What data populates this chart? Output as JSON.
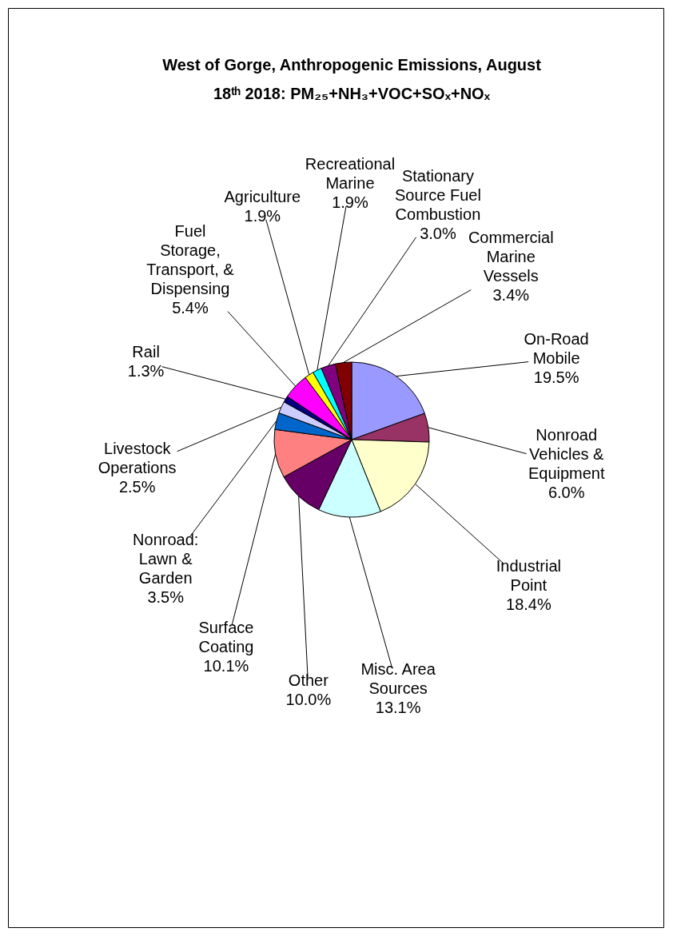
{
  "chart_data": {
    "type": "pie",
    "title": "West of Gorge, Anthropogenic Emissions, August 18ᵗʰ 2018: PM₂₅+NH₃+VOC+SOₓ+NOₓ",
    "categories": [
      "On-Road Mobile",
      "Nonroad Vehicles & Equipment",
      "Industrial Point",
      "Misc. Area Sources",
      "Other",
      "Surface Coating",
      "Nonroad: Lawn & Garden",
      "Livestock Operations",
      "Rail",
      "Fuel Storage, Transport, & Dispensing",
      "Agriculture",
      "Recreational Marine",
      "Stationary Source Fuel Combustion",
      "Commercial Marine Vessels"
    ],
    "values": [
      19.5,
      6.0,
      18.4,
      13.1,
      10.0,
      10.1,
      3.5,
      2.5,
      1.3,
      5.4,
      1.9,
      1.9,
      3.0,
      3.4
    ],
    "value_labels": [
      "19.5%",
      "6.0%",
      "18.4%",
      "13.1%",
      "10.0%",
      "10.1%",
      "3.5%",
      "2.5%",
      "1.3%",
      "5.4%",
      "1.9%",
      "1.9%",
      "3.0%",
      "3.4%"
    ],
    "colors": [
      "#9999ff",
      "#993366",
      "#ffffcc",
      "#ccffff",
      "#660066",
      "#ff8080",
      "#0066cc",
      "#ccccff",
      "#000080",
      "#ff00ff",
      "#ffff00",
      "#00ffff",
      "#800080",
      "#800000"
    ]
  }
}
